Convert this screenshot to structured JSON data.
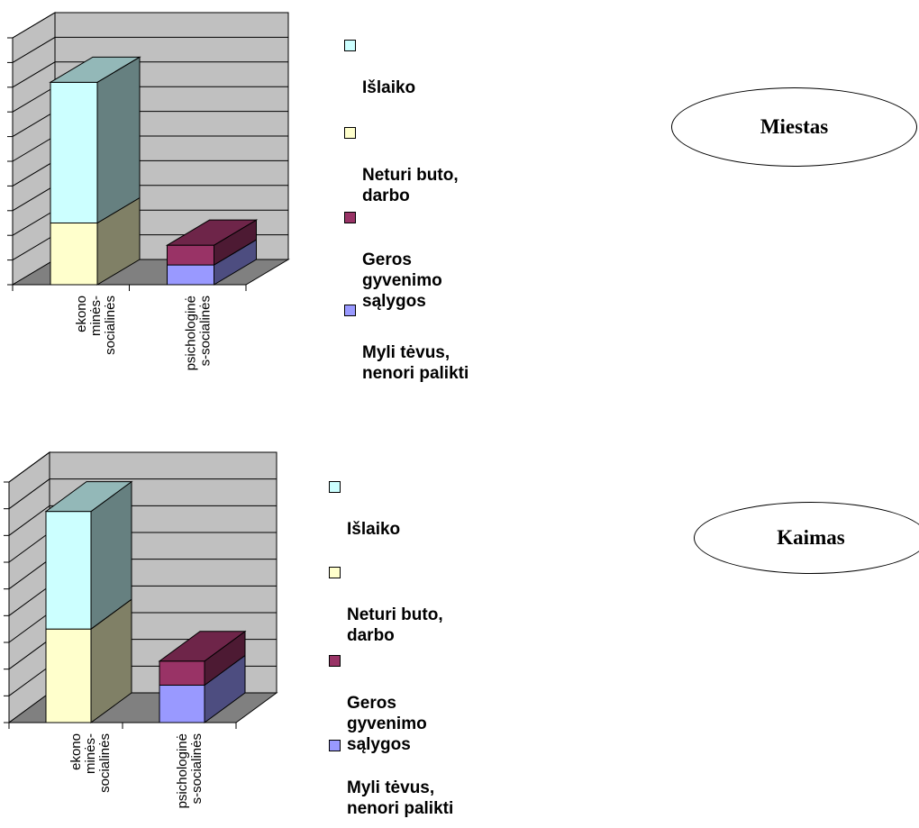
{
  "chart_data": [
    {
      "type": "bar",
      "stacked": true,
      "three_d": true,
      "categories": [
        "ekono\nminės-\nsocialinės",
        "psichologinė\ns-socialinės"
      ],
      "series": [
        {
          "name": "Išlaiko",
          "values": [
            5.7,
            0
          ],
          "color": "#CCFFFF"
        },
        {
          "name": "Neturi buto, darbo",
          "values": [
            2.5,
            0
          ],
          "color": "#FFFFCC"
        },
        {
          "name": "Geros gyvenimo sąlygos",
          "values": [
            0,
            0.8
          ],
          "color": "#993366"
        },
        {
          "name": "Myli tėvus, nenori palikti",
          "values": [
            0,
            0.8
          ],
          "color": "#9999FF"
        }
      ],
      "ylim": [
        0,
        10
      ],
      "grid": true,
      "legend_position": "right",
      "label": "Miestas"
    },
    {
      "type": "bar",
      "stacked": true,
      "three_d": true,
      "categories": [
        "ekono\nminės-\nsocialinės",
        "psichologinė\ns-socialinės"
      ],
      "series": [
        {
          "name": "Išlaiko",
          "values": [
            4.4,
            0
          ],
          "color": "#CCFFFF"
        },
        {
          "name": "Neturi buto, darbo",
          "values": [
            3.5,
            0
          ],
          "color": "#FFFFCC"
        },
        {
          "name": "Geros gyvenimo sąlygos",
          "values": [
            0,
            0.9
          ],
          "color": "#993366"
        },
        {
          "name": "Myli tėvus, nenori palikti",
          "values": [
            0,
            1.4
          ],
          "color": "#9999FF"
        }
      ],
      "ylim": [
        0,
        9
      ],
      "grid": true,
      "legend_position": "right",
      "label": "Kaimas"
    }
  ],
  "legend_labels": [
    "Išlaiko",
    "Neturi buto,\ndarbo",
    "Geros\ngyvenimo\nsąlygos",
    "Myli tėvus,\nnenori palikti"
  ]
}
